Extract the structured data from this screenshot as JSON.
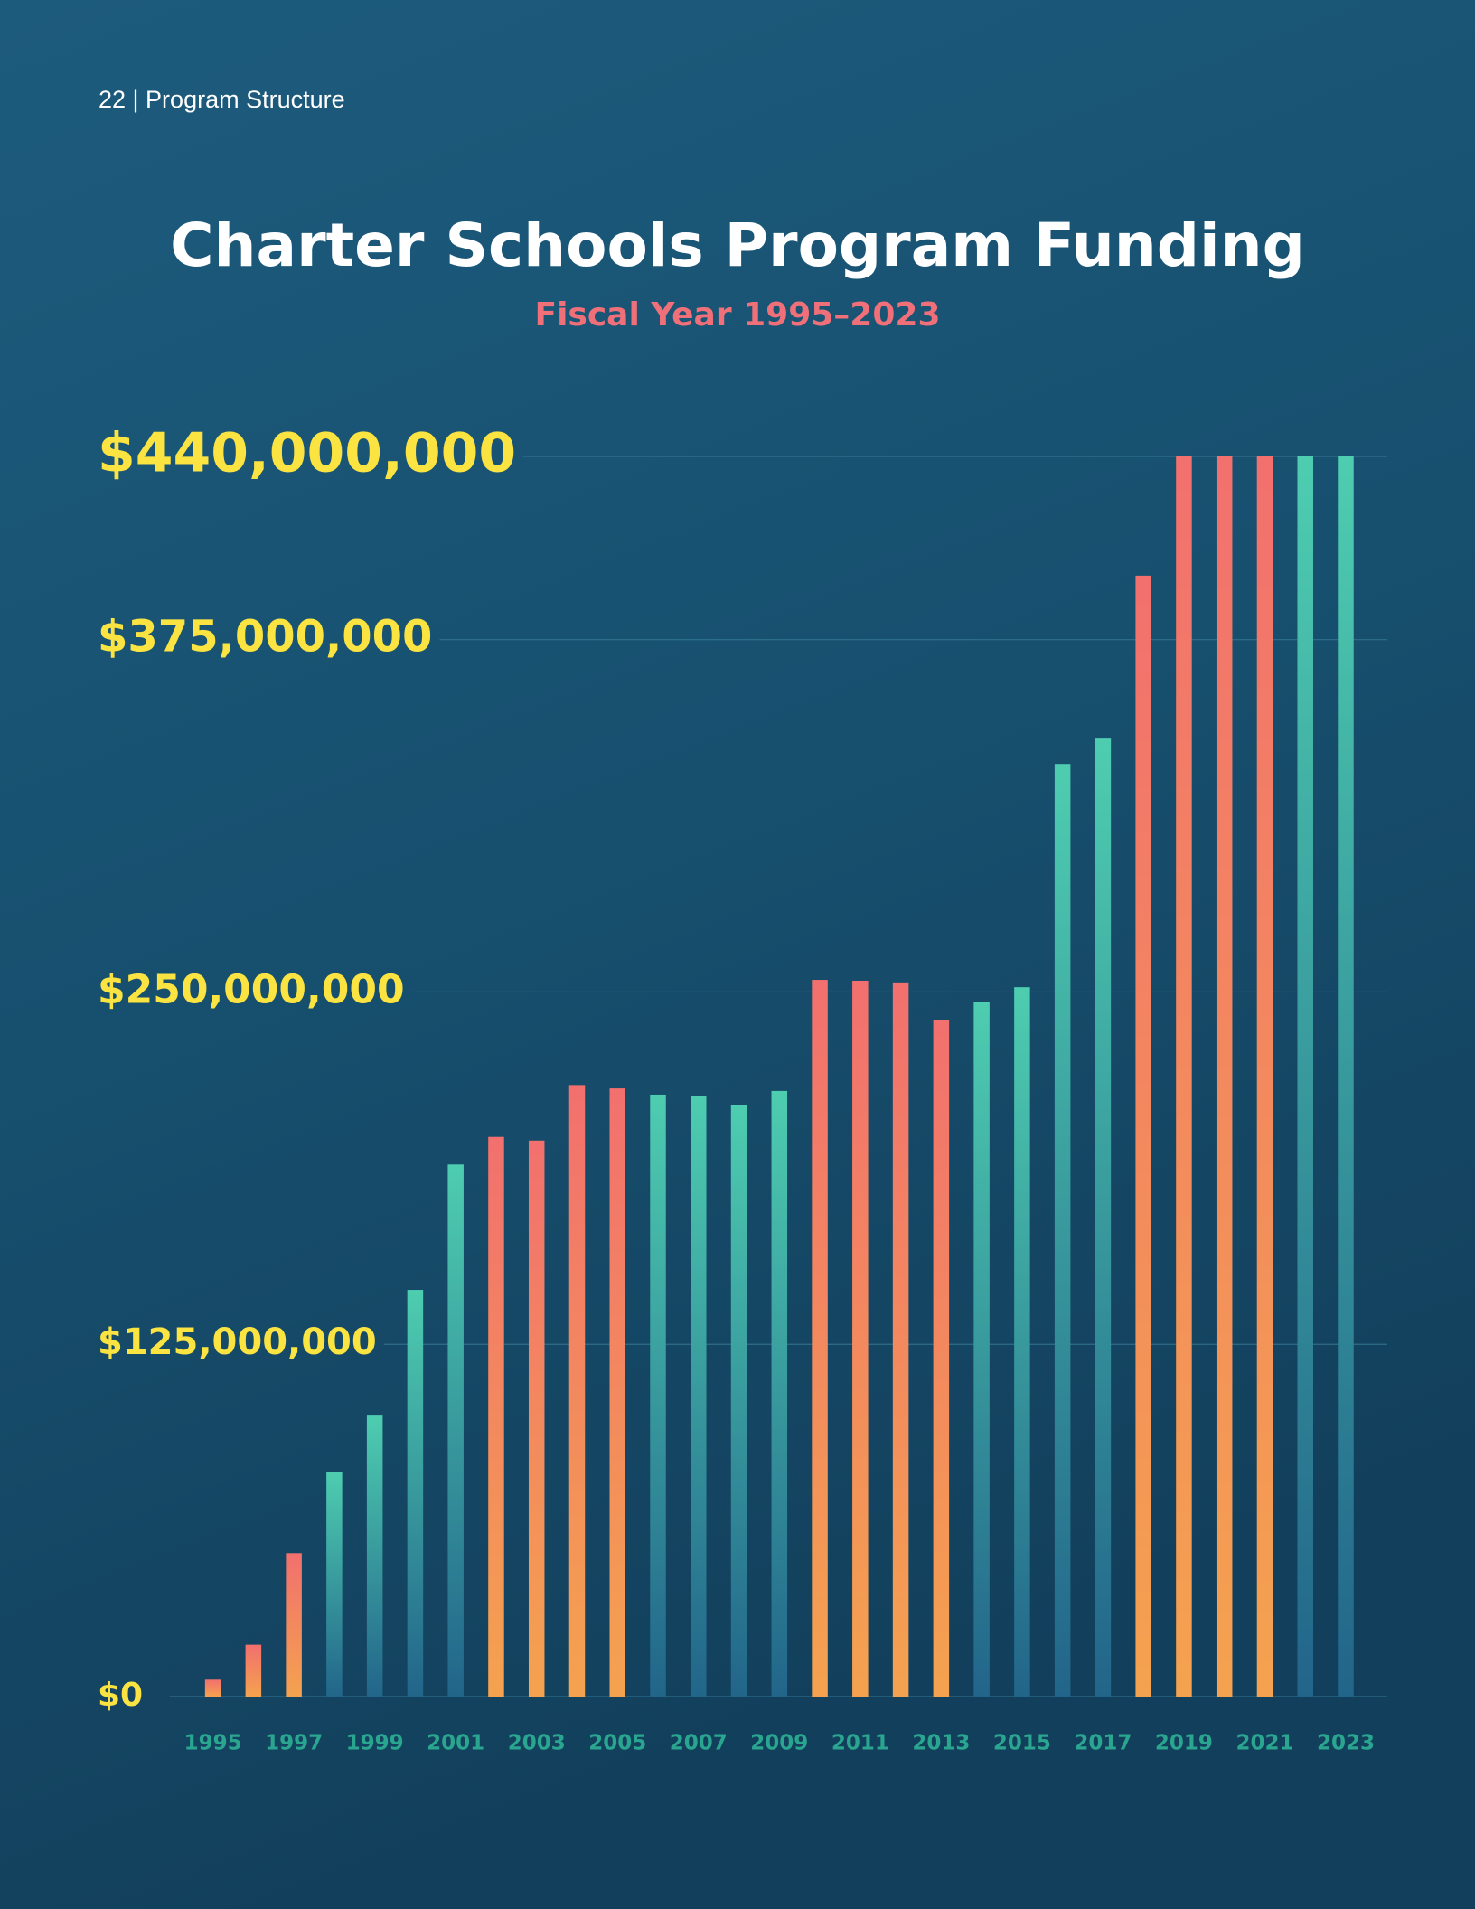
{
  "header": "22 | Program Structure",
  "chart_data": {
    "type": "bar",
    "title": "Charter Schools Program Funding",
    "subtitle": "Fiscal Year 1995–2023",
    "categories": [
      "1995",
      null,
      "1997",
      null,
      "1999",
      null,
      "2001",
      null,
      "2003",
      null,
      "2005",
      null,
      "2007",
      null,
      "2009",
      null,
      "2011",
      null,
      "2013",
      null,
      "2015",
      null,
      "2017",
      null,
      "2019",
      null,
      "2021",
      null,
      "2023"
    ],
    "values": [
      6000000,
      18400000,
      50900000,
      79600000,
      99700000,
      144300000,
      188800000,
      198600000,
      197300000,
      217000000,
      215800000,
      213600000,
      213200000,
      209800000,
      214900000,
      254300000,
      254000000,
      253400000,
      240200000,
      246600000,
      251700000,
      330900000,
      339900000,
      397700000,
      440000000,
      440000000,
      440000000,
      440000000,
      440000000
    ],
    "colors": [
      "#f2706e",
      "#f2706e",
      "#f2706e",
      "#4ecdb0",
      "#4ecdb0",
      "#4ecdb0",
      "#4ecdb0",
      "#f2706e",
      "#f2706e",
      "#f2706e",
      "#f2706e",
      "#4ecdb0",
      "#4ecdb0",
      "#4ecdb0",
      "#4ecdb0",
      "#f2706e",
      "#f2706e",
      "#f2706e",
      "#f2706e",
      "#4ecdb0",
      "#4ecdb0",
      "#4ecdb0",
      "#4ecdb0",
      "#f2706e",
      "#f2706e",
      "#f2706e",
      "#f2706e",
      "#4ecdb0",
      "#4ecdb0"
    ],
    "ylim": [
      0,
      440000000
    ],
    "yticks": [
      {
        "value": 0,
        "label": "$0"
      },
      {
        "value": 125000000,
        "label": "$125,000,000"
      },
      {
        "value": 250000000,
        "label": "$250,000,000"
      },
      {
        "value": 375000000,
        "label": "$375,000,000"
      },
      {
        "value": 440000000,
        "label": "$440,000,000"
      }
    ],
    "grid": true
  }
}
